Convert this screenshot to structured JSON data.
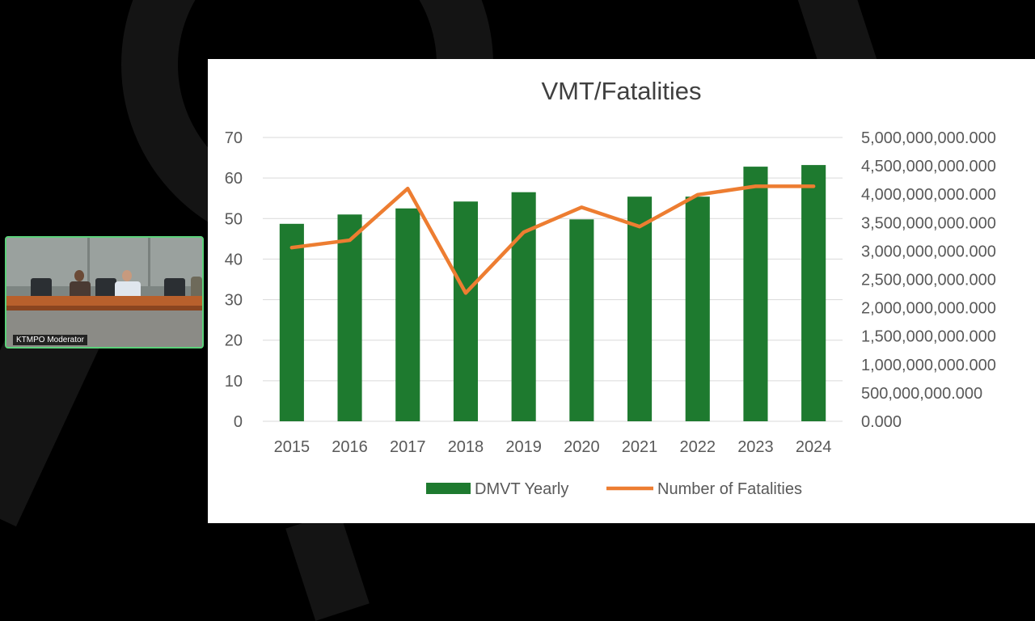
{
  "meeting": {
    "participant_name": "KTMPO Moderator",
    "tile_border_color": "#5cd17a"
  },
  "slide": {
    "chart_data": {
      "type": "bar+line",
      "title": "VMT/Fatalities",
      "categories": [
        "2015",
        "2016",
        "2017",
        "2018",
        "2019",
        "2020",
        "2021",
        "2022",
        "2023",
        "2024"
      ],
      "series": [
        {
          "name": "DMVT Yearly",
          "type": "bar",
          "axis": "left",
          "color": "#1e7a2f",
          "values": [
            48.7,
            51.0,
            52.5,
            54.2,
            56.5,
            49.8,
            55.4,
            55.4,
            62.8,
            63.2
          ]
        },
        {
          "name": "Number of Fatalities",
          "type": "line",
          "axis": "right",
          "color": "#ed7d31",
          "values": [
            3060000000000,
            3190000000000,
            4100000000000,
            2260000000000,
            3330000000000,
            3770000000000,
            3430000000000,
            3990000000000,
            4140000000000,
            4140000000000
          ]
        }
      ],
      "left_axis": {
        "ylim": [
          0,
          70
        ],
        "ticks": [
          "0",
          "10",
          "20",
          "30",
          "40",
          "50",
          "60",
          "70"
        ]
      },
      "right_axis": {
        "ylim": [
          0,
          5000000000000
        ],
        "ticks": [
          "0.000",
          "500,000,000.000",
          "1,000,000,000.000",
          "1,500,000,000.000",
          "2,000,000,000.000",
          "2,500,000,000.000",
          "3,000,000,000.000",
          "3,500,000,000.000",
          "4,000,000,000.000",
          "4,500,000,000.000",
          "5,000,000,000.000"
        ]
      },
      "grid": true,
      "legend_position": "bottom"
    }
  }
}
